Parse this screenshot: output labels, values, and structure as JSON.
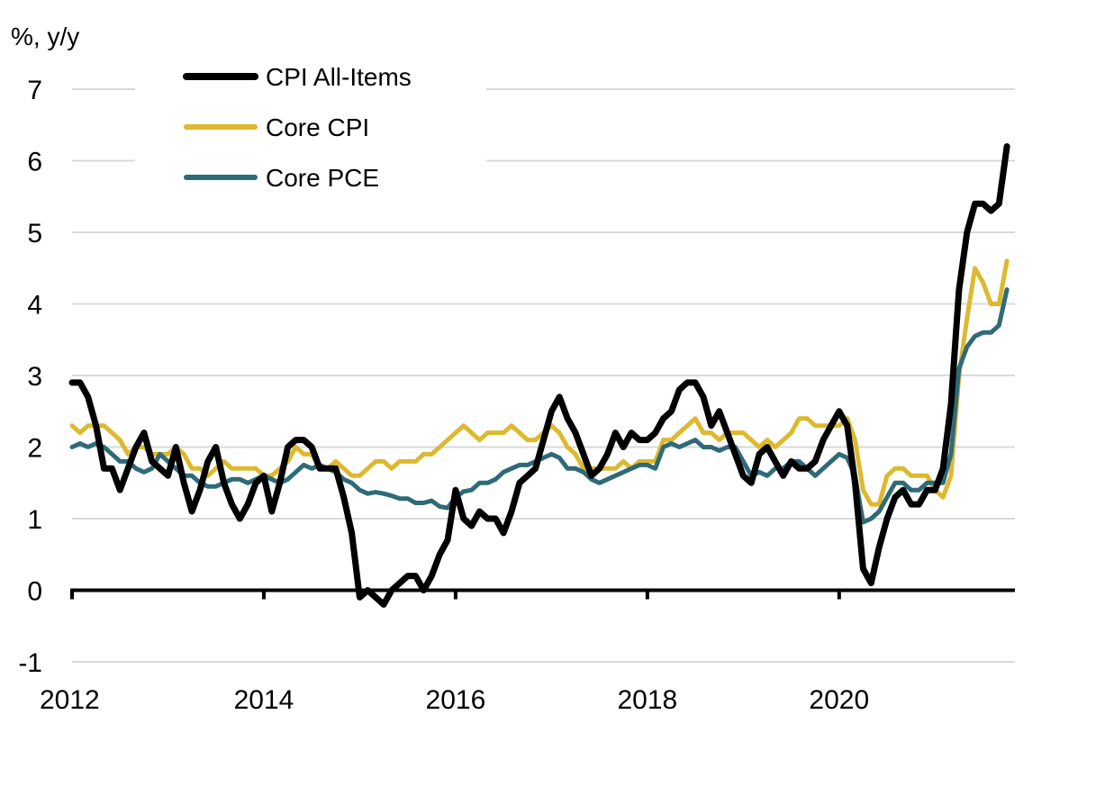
{
  "chart_data": {
    "type": "line",
    "unit_label": "%, y/y",
    "title": "",
    "xlabel": "",
    "ylabel": "%, y/y",
    "x_start": "2012-01",
    "x_end": "2021-10",
    "x_frequency": "monthly",
    "xlim": [
      "2012-01",
      "2021-11"
    ],
    "ylim": [
      -1,
      7
    ],
    "y_ticks": [
      -1,
      0,
      1,
      2,
      3,
      4,
      5,
      6,
      7
    ],
    "x_ticks": [
      "2012",
      "2014",
      "2016",
      "2018",
      "2020"
    ],
    "grid": "horizontal",
    "legend_position": "top-left",
    "series": [
      {
        "name": "CPI All-Items",
        "color": "#000000",
        "values": [
          2.9,
          2.9,
          2.7,
          2.3,
          1.7,
          1.7,
          1.4,
          1.7,
          2.0,
          2.2,
          1.8,
          1.7,
          1.6,
          2.0,
          1.5,
          1.1,
          1.4,
          1.8,
          2.0,
          1.5,
          1.2,
          1.0,
          1.2,
          1.5,
          1.6,
          1.1,
          1.5,
          2.0,
          2.1,
          2.1,
          2.0,
          1.7,
          1.7,
          1.7,
          1.3,
          0.8,
          -0.1,
          0.0,
          -0.1,
          -0.2,
          0.0,
          0.1,
          0.2,
          0.2,
          0.0,
          0.2,
          0.5,
          0.7,
          1.4,
          1.0,
          0.9,
          1.1,
          1.0,
          1.0,
          0.8,
          1.1,
          1.5,
          1.6,
          1.7,
          2.1,
          2.5,
          2.7,
          2.4,
          2.2,
          1.9,
          1.6,
          1.7,
          1.9,
          2.2,
          2.0,
          2.2,
          2.1,
          2.1,
          2.2,
          2.4,
          2.5,
          2.8,
          2.9,
          2.9,
          2.7,
          2.3,
          2.5,
          2.2,
          1.9,
          1.6,
          1.5,
          1.9,
          2.0,
          1.8,
          1.6,
          1.8,
          1.7,
          1.7,
          1.8,
          2.1,
          2.3,
          2.5,
          2.3,
          1.5,
          0.3,
          0.1,
          0.6,
          1.0,
          1.3,
          1.4,
          1.2,
          1.2,
          1.4,
          1.4,
          1.7,
          2.6,
          4.2,
          5.0,
          5.4,
          5.4,
          5.3,
          5.4,
          6.2
        ]
      },
      {
        "name": "Core CPI",
        "color": "#DDB92F",
        "values": [
          2.3,
          2.2,
          2.3,
          2.3,
          2.3,
          2.2,
          2.1,
          1.9,
          2.0,
          2.0,
          1.9,
          1.9,
          1.9,
          2.0,
          1.9,
          1.7,
          1.7,
          1.6,
          1.7,
          1.8,
          1.7,
          1.7,
          1.7,
          1.7,
          1.6,
          1.6,
          1.7,
          1.8,
          2.0,
          1.9,
          1.9,
          1.7,
          1.7,
          1.8,
          1.7,
          1.6,
          1.6,
          1.7,
          1.8,
          1.8,
          1.7,
          1.8,
          1.8,
          1.8,
          1.9,
          1.9,
          2.0,
          2.1,
          2.2,
          2.3,
          2.2,
          2.1,
          2.2,
          2.2,
          2.2,
          2.3,
          2.2,
          2.1,
          2.1,
          2.2,
          2.3,
          2.2,
          2.0,
          1.9,
          1.7,
          1.7,
          1.7,
          1.7,
          1.7,
          1.8,
          1.7,
          1.8,
          1.8,
          1.8,
          2.1,
          2.1,
          2.2,
          2.3,
          2.4,
          2.2,
          2.2,
          2.1,
          2.2,
          2.2,
          2.2,
          2.1,
          2.0,
          2.1,
          2.0,
          2.1,
          2.2,
          2.4,
          2.4,
          2.3,
          2.3,
          2.3,
          2.3,
          2.4,
          2.1,
          1.4,
          1.2,
          1.2,
          1.6,
          1.7,
          1.7,
          1.6,
          1.6,
          1.6,
          1.4,
          1.3,
          1.6,
          3.0,
          3.8,
          4.5,
          4.3,
          4.0,
          4.0,
          4.6
        ]
      },
      {
        "name": "Core PCE",
        "color": "#2F6A78",
        "values": [
          2.0,
          2.05,
          2.0,
          2.05,
          2.0,
          1.9,
          1.8,
          1.8,
          1.7,
          1.65,
          1.7,
          1.9,
          1.8,
          1.7,
          1.6,
          1.6,
          1.5,
          1.45,
          1.45,
          1.5,
          1.55,
          1.55,
          1.5,
          1.55,
          1.6,
          1.55,
          1.5,
          1.55,
          1.65,
          1.75,
          1.7,
          1.75,
          1.7,
          1.65,
          1.55,
          1.5,
          1.4,
          1.35,
          1.37,
          1.35,
          1.32,
          1.28,
          1.28,
          1.22,
          1.22,
          1.25,
          1.17,
          1.15,
          1.3,
          1.38,
          1.4,
          1.5,
          1.5,
          1.55,
          1.65,
          1.7,
          1.75,
          1.75,
          1.8,
          1.85,
          1.9,
          1.85,
          1.7,
          1.7,
          1.65,
          1.55,
          1.5,
          1.55,
          1.6,
          1.65,
          1.7,
          1.75,
          1.75,
          1.7,
          2.0,
          2.05,
          2.0,
          2.05,
          2.1,
          2.0,
          2.0,
          1.95,
          2.0,
          2.0,
          1.8,
          1.6,
          1.65,
          1.6,
          1.7,
          1.7,
          1.8,
          1.8,
          1.7,
          1.6,
          1.7,
          1.8,
          1.9,
          1.85,
          1.6,
          0.95,
          1.0,
          1.1,
          1.3,
          1.5,
          1.5,
          1.4,
          1.4,
          1.5,
          1.5,
          1.5,
          1.9,
          3.1,
          3.4,
          3.55,
          3.6,
          3.6,
          3.7,
          4.2
        ]
      }
    ]
  }
}
